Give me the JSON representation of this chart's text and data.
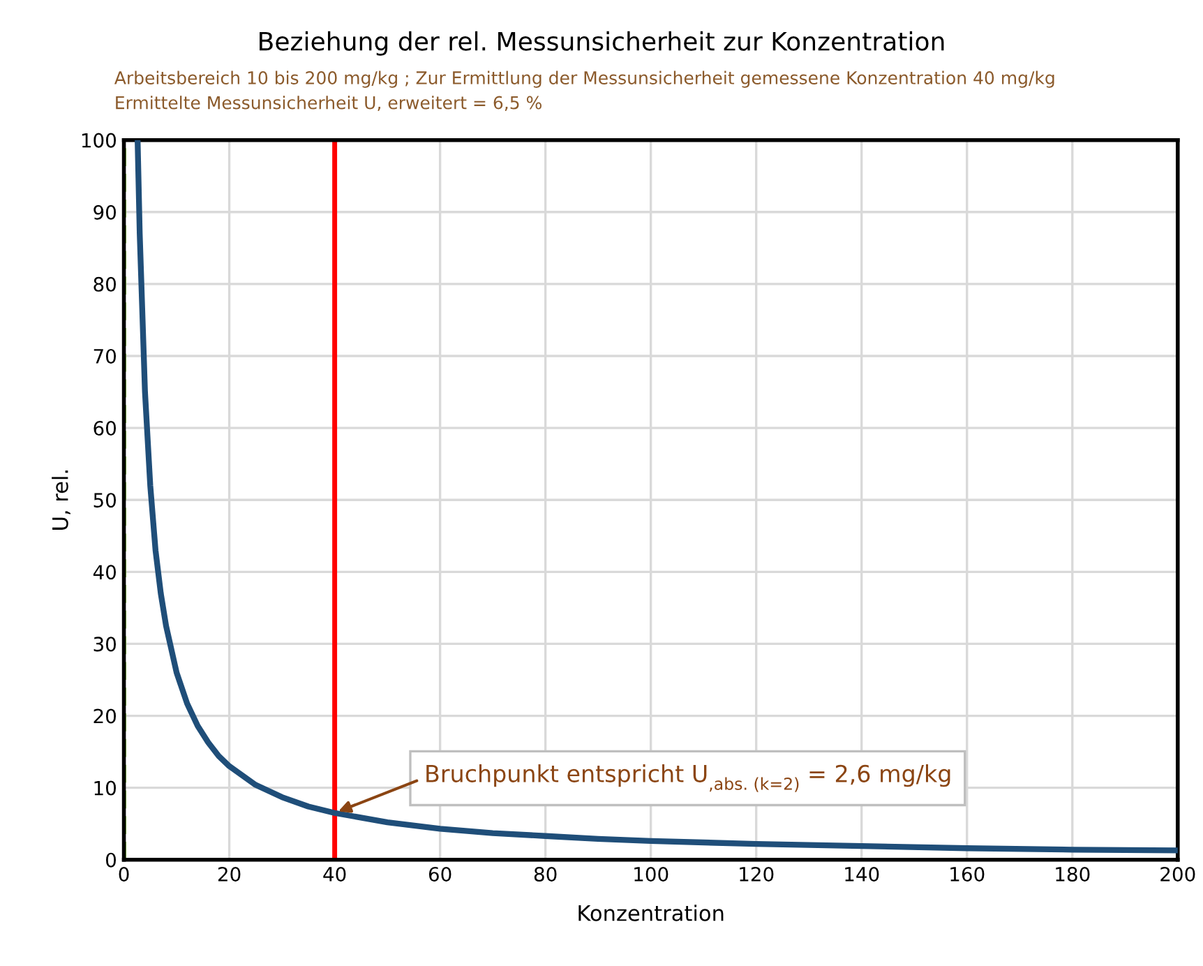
{
  "chart_data": {
    "type": "line",
    "title": "Beziehung der rel. Messunsicherheit zur Konzentration",
    "subtitle": "Arbeitsbereich 10 bis 200 mg/kg ; Zur Ermittlung der Messunsicherheit gemessene Konzentration 40 mg/kg\nErmittelte Messunsicherheit U, erweitert = 6,5 %",
    "xlabel": "Konzentration",
    "ylabel": "U, rel.",
    "series": [
      {
        "color": "#1f4e79",
        "x": [
          2.6,
          3,
          4,
          5,
          6,
          7,
          8,
          10,
          12,
          14,
          16,
          18,
          20,
          25,
          30,
          35,
          40,
          50,
          60,
          70,
          80,
          90,
          100,
          120,
          140,
          160,
          180,
          200
        ],
        "values": [
          100,
          87,
          65,
          52,
          43,
          37,
          32.5,
          26,
          21.7,
          18.6,
          16.3,
          14.4,
          13,
          10.4,
          8.7,
          7.4,
          6.5,
          5.2,
          4.3,
          3.7,
          3.3,
          2.9,
          2.6,
          2.2,
          1.9,
          1.6,
          1.4,
          1.3
        ]
      }
    ],
    "xlim": [
      0,
      200
    ],
    "ylim": [
      0,
      100
    ],
    "xticks": [
      0,
      20,
      40,
      60,
      80,
      100,
      120,
      140,
      160,
      180,
      200
    ],
    "yticks": [
      0,
      10,
      20,
      30,
      40,
      50,
      60,
      70,
      80,
      90,
      100
    ],
    "grid": true,
    "marker": "none",
    "line_style": "solid",
    "ref_lines": [
      {
        "axis": "x",
        "value": 40,
        "color": "#ff0000",
        "line_style": "solid"
      },
      {
        "axis": "x",
        "value": 0,
        "color": "#92d050",
        "line_style": "dashed"
      }
    ],
    "annotations": [
      {
        "text": "Bruchpunkt entspricht U$_{,abs. (k=2)}$ = 2,6 mg/kg",
        "x": 40,
        "y": 6.5
      }
    ]
  }
}
